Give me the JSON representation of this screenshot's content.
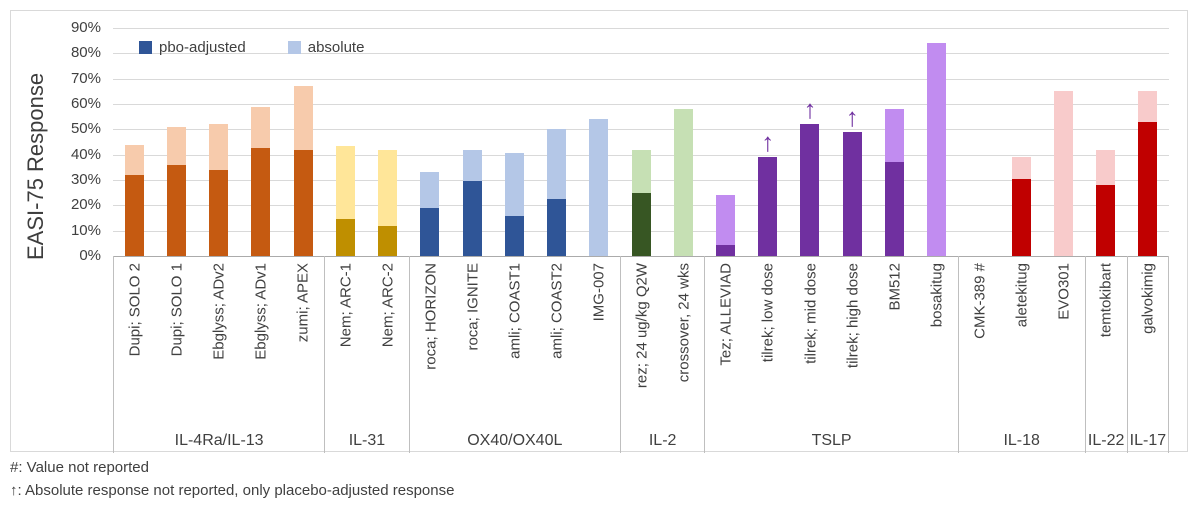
{
  "chart_data": {
    "type": "bar",
    "title": "",
    "xlabel": "",
    "ylabel": "EASI-75 Response",
    "ylim": [
      0,
      90
    ],
    "yticks": [
      "0%",
      "10%",
      "20%",
      "30%",
      "40%",
      "50%",
      "60%",
      "70%",
      "80%",
      "90%"
    ],
    "grid": true,
    "legend_position": "top-left-inside",
    "legend": [
      {
        "label": "pbo-adjusted",
        "color": "#2F5597"
      },
      {
        "label": "absolute",
        "color": "#B4C7E7"
      }
    ],
    "footnotes": [
      "#: Value not reported",
      "↑: Absolute response not reported, only placebo-adjusted response"
    ],
    "series_note": "stacked display: dark = placebo-adjusted response, light = absolute response; values in %",
    "groups": [
      {
        "name": "IL-4Ra/IL-13",
        "dark": "#C55A11",
        "light": "#F7CBAC",
        "bars": [
          {
            "label": "Dupi; SOLO 2",
            "pbo_adjusted": 32,
            "absolute": 44
          },
          {
            "label": "Dupi; SOLO 1",
            "pbo_adjusted": 36,
            "absolute": 51
          },
          {
            "label": "Ebglyss; ADv2",
            "pbo_adjusted": 34,
            "absolute": 52
          },
          {
            "label": "Ebglyss; ADv1",
            "pbo_adjusted": 42.5,
            "absolute": 59
          },
          {
            "label": "zumi; APEX",
            "pbo_adjusted": 42,
            "absolute": 67
          }
        ]
      },
      {
        "name": "IL-31",
        "dark": "#BF8F00",
        "light": "#FFE699",
        "bars": [
          {
            "label": "Nem; ARC-1",
            "pbo_adjusted": 14.5,
            "absolute": 43.5
          },
          {
            "label": "Nem; ARC-2",
            "pbo_adjusted": 12,
            "absolute": 42
          }
        ]
      },
      {
        "name": "OX40/OX40L",
        "dark": "#2F5597",
        "light": "#B4C7E7",
        "bars": [
          {
            "label": "roca; HORIZON",
            "pbo_adjusted": 19,
            "absolute": 33
          },
          {
            "label": "roca; IGNITE",
            "pbo_adjusted": 29.5,
            "absolute": 42
          },
          {
            "label": "amli; COAST1",
            "pbo_adjusted": 16,
            "absolute": 40.5
          },
          {
            "label": "amli; COAST2",
            "pbo_adjusted": 22.5,
            "absolute": 50
          },
          {
            "label": "IMG-007",
            "pbo_adjusted": null,
            "absolute": 54
          }
        ]
      },
      {
        "name": "IL-2",
        "dark": "#375623",
        "light": "#C6E0B4",
        "bars": [
          {
            "label": "rez; 24 ug/kg Q2W",
            "pbo_adjusted": 25,
            "absolute": 42
          },
          {
            "label": "crossover, 24 wks",
            "pbo_adjusted": null,
            "absolute": 58
          }
        ]
      },
      {
        "name": "TSLP",
        "dark": "#7030A0",
        "light": "#C18CF0",
        "bars": [
          {
            "label": "Tez; ALLEVIAD",
            "pbo_adjusted": 4.5,
            "absolute": 24
          },
          {
            "label": "tilrek; low dose",
            "pbo_adjusted": 39,
            "absolute": null,
            "arrow": true
          },
          {
            "label": "tilrek; mid dose",
            "pbo_adjusted": 52,
            "absolute": null,
            "arrow": true
          },
          {
            "label": "tilrek; high dose",
            "pbo_adjusted": 49,
            "absolute": null,
            "arrow": true
          },
          {
            "label": "BM512",
            "pbo_adjusted": 37,
            "absolute": 58
          },
          {
            "label": "bosakitug",
            "pbo_adjusted": null,
            "absolute": 84
          }
        ]
      },
      {
        "name": "IL-18",
        "dark": "#C00000",
        "light": "#F8CBCB",
        "bars": [
          {
            "label": "CMK-389",
            "pbo_adjusted": null,
            "absolute": null,
            "annotation": "#"
          },
          {
            "label": "aletekitug",
            "pbo_adjusted": 30.5,
            "absolute": 39
          },
          {
            "label": "EVO301",
            "pbo_adjusted": null,
            "absolute": 65
          }
        ]
      },
      {
        "name": "IL-22",
        "dark": "#C00000",
        "light": "#F8CBCB",
        "bars": [
          {
            "label": "temtokibart",
            "pbo_adjusted": 28,
            "absolute": 42
          }
        ]
      },
      {
        "name": "IL-17",
        "dark": "#C00000",
        "light": "#F8CBCB",
        "bars": [
          {
            "label": "galvokimig",
            "pbo_adjusted": 53,
            "absolute": 65
          }
        ]
      }
    ]
  }
}
